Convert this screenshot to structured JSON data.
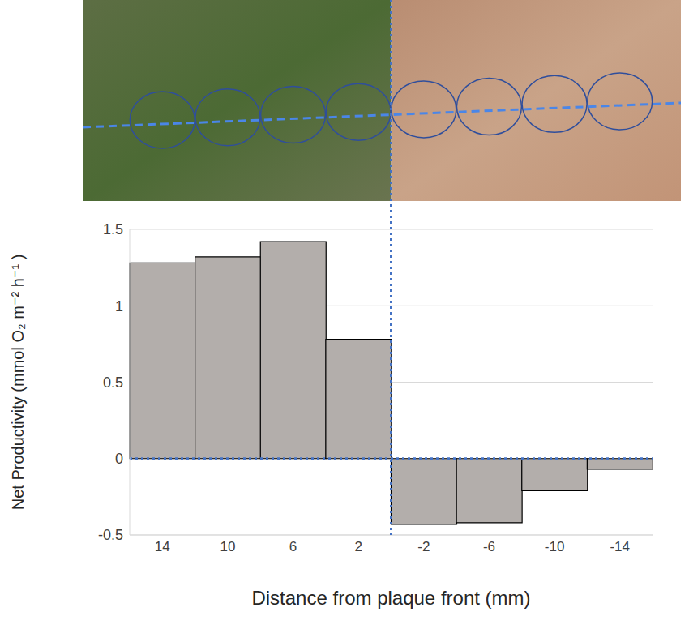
{
  "chart_data": {
    "type": "bar",
    "x_label": "Distance from plaque front (mm)",
    "y_label": "Net Productivity (mmol O₂ m⁻² h⁻¹ )",
    "categories": [
      "14",
      "10",
      "6",
      "2",
      "-2",
      "-6",
      "-10",
      "-14"
    ],
    "values": [
      1.28,
      1.32,
      1.42,
      0.78,
      -0.43,
      -0.42,
      -0.21,
      -0.07
    ],
    "color": "#b3aeab",
    "ylim": [
      -0.5,
      1.5
    ],
    "yticks": [
      -0.5,
      0,
      0.5,
      1,
      1.5
    ],
    "grid": true
  }
}
